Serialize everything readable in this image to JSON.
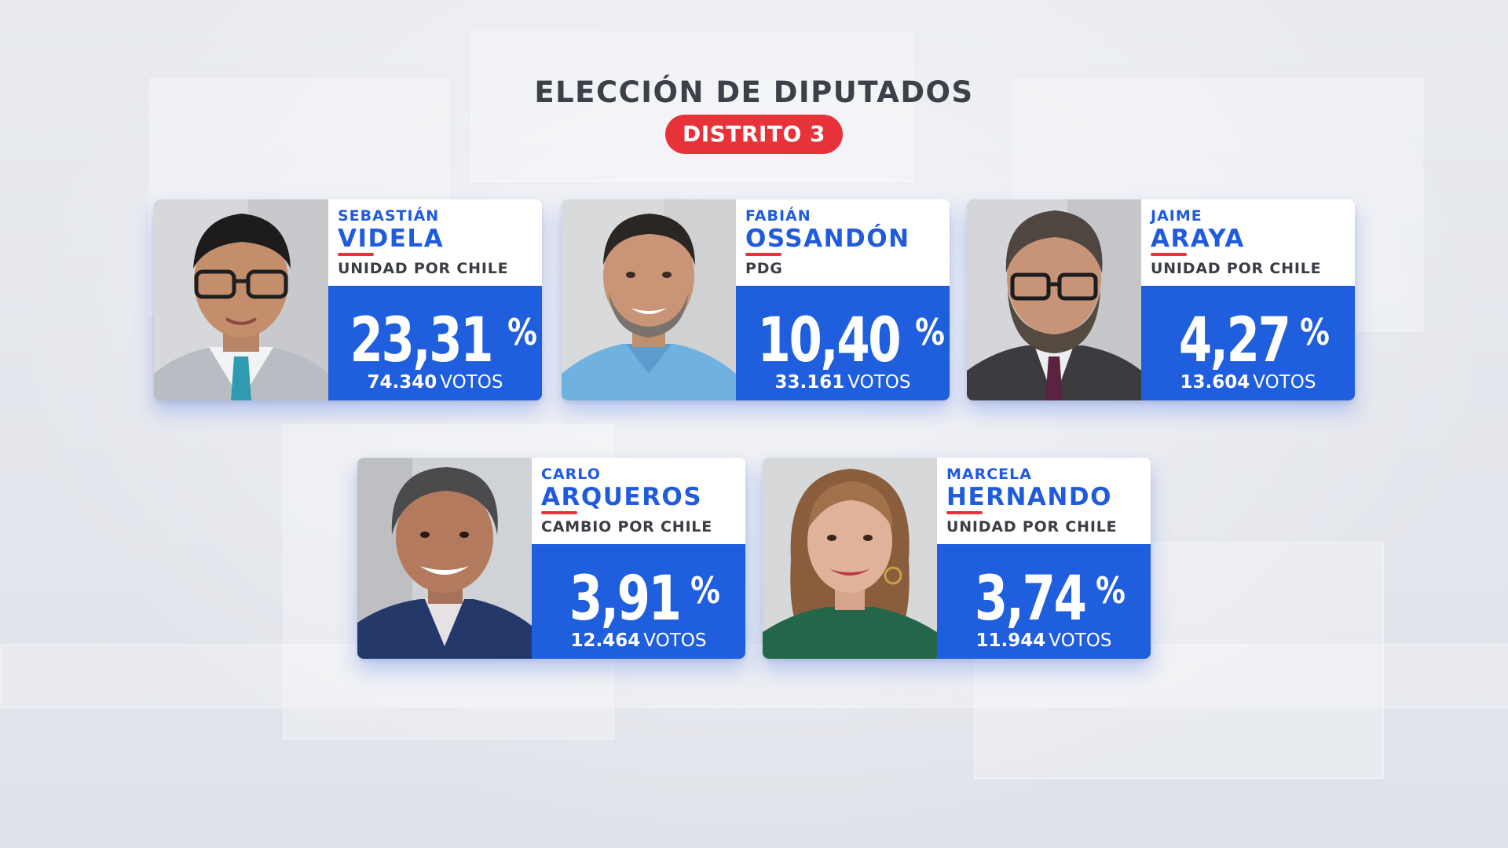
{
  "header": {
    "title": "ELECCIÓN DE DIPUTADOS",
    "district": "DISTRITO 3"
  },
  "colors": {
    "accent_blue": "#1f5edc",
    "accent_red": "#e8323a",
    "text_dark": "#3d4048"
  },
  "candidates": [
    {
      "first_name": "SEBASTIÁN",
      "last_name": "VIDELA",
      "party": "UNIDAD POR CHILE",
      "percent": "23,31",
      "percent_sign": "%",
      "votes": "74.340",
      "votes_label": "VOTOS"
    },
    {
      "first_name": "FABIÁN",
      "last_name": "OSSANDÓN",
      "party": "PDG",
      "percent": "10,40",
      "percent_sign": "%",
      "votes": "33.161",
      "votes_label": "VOTOS"
    },
    {
      "first_name": "JAIME",
      "last_name": "ARAYA",
      "party": "UNIDAD POR CHILE",
      "percent": "4,27",
      "percent_sign": "%",
      "votes": "13.604",
      "votes_label": "VOTOS"
    },
    {
      "first_name": "CARLO",
      "last_name": "ARQUEROS",
      "party": "CAMBIO POR CHILE",
      "percent": "3,91",
      "percent_sign": "%",
      "votes": "12.464",
      "votes_label": "VOTOS"
    },
    {
      "first_name": "MARCELA",
      "last_name": "HERNANDO",
      "party": "UNIDAD POR CHILE",
      "percent": "3,74",
      "percent_sign": "%",
      "votes": "11.944",
      "votes_label": "VOTOS"
    }
  ]
}
